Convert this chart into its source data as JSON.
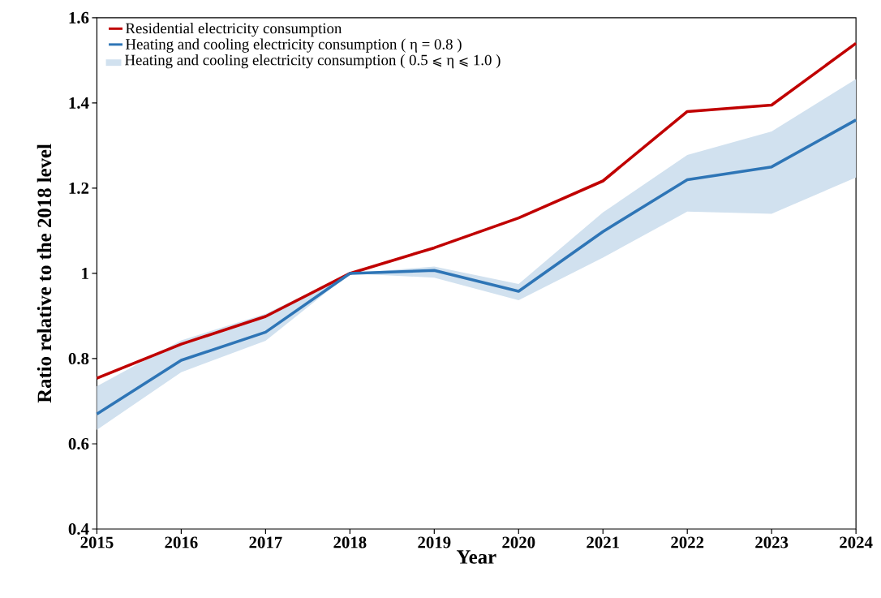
{
  "chart_data": {
    "type": "line",
    "xlabel": "Year",
    "ylabel": "Ratio relative to the 2018 level",
    "x": [
      2015,
      2016,
      2017,
      2018,
      2019,
      2020,
      2021,
      2022,
      2023,
      2024
    ],
    "xlim": [
      2015,
      2024
    ],
    "xticks": [
      2015,
      2016,
      2017,
      2018,
      2019,
      2020,
      2021,
      2022,
      2023,
      2024
    ],
    "ylim": [
      0.4,
      1.6
    ],
    "yticks": [
      0.4,
      0.6,
      0.8,
      1,
      1.2,
      1.4,
      1.6
    ],
    "series": [
      {
        "name": "Residential electricity consumption",
        "type": "line",
        "color": "#c00000",
        "values": [
          0.754,
          0.834,
          0.899,
          1.0,
          1.06,
          1.13,
          1.217,
          1.38,
          1.395,
          1.54
        ]
      },
      {
        "name": "Heating and cooling electricity consumption ( η = 0.8 )",
        "type": "line",
        "color": "#2e75b6",
        "values": [
          0.67,
          0.796,
          0.862,
          1.0,
          1.007,
          0.958,
          1.098,
          1.22,
          1.25,
          1.36
        ],
        "upper": [
          0.735,
          0.843,
          0.905,
          1.0,
          1.016,
          0.975,
          1.143,
          1.278,
          1.333,
          1.456
        ],
        "lower": [
          0.633,
          0.768,
          0.842,
          1.0,
          0.99,
          0.937,
          1.037,
          1.145,
          1.14,
          1.225
        ]
      }
    ],
    "annotations": [
      "Heating and cooling electricity consumption ( 0.5 ⩽ η ⩽ 1.0 )"
    ],
    "legend": "top left",
    "grid": false,
    "marker": "none",
    "line_style": "solid"
  }
}
